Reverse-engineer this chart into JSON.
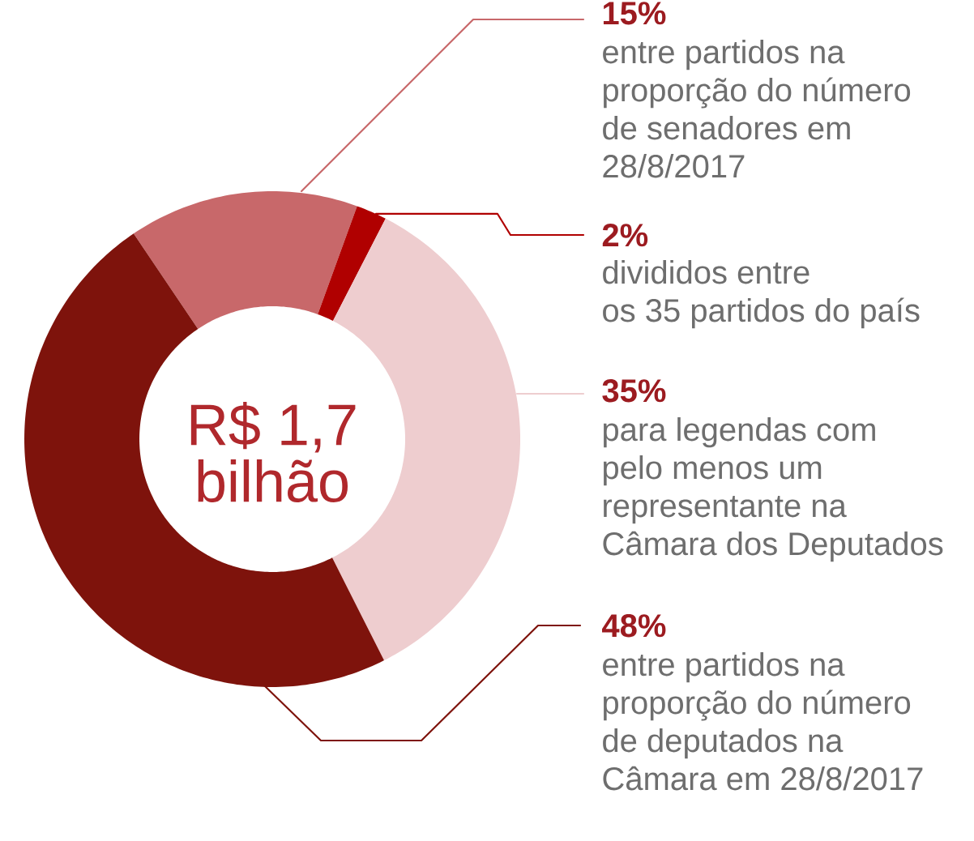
{
  "chart_data": {
    "type": "donut",
    "categories": [
      "entre partidos na proporção do número de senadores em 28/8/2017",
      "divididos entre os 35 partidos do país",
      "para legendas com pelo menos um representante na Câmara dos Deputados",
      "entre partidos na proporção do número de deputados na Câmara em 28/8/2017"
    ],
    "values": [
      15,
      2,
      35,
      48
    ],
    "value_labels": [
      "15%",
      "2%",
      "35%",
      "48%"
    ],
    "colors": [
      "#c8686a",
      "#b00000",
      "#eecdcf",
      "#7e130c"
    ],
    "annotations": [
      "R$ 1,7 bilhão"
    ]
  }
}
